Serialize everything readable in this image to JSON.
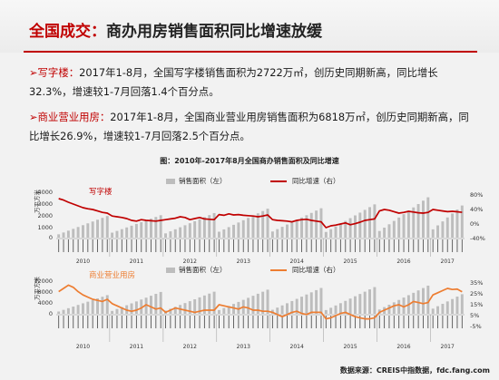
{
  "page": {
    "title_prefix": "全国成交：",
    "title_rest": "商办用房销售面积同比增速放缓",
    "para1_lead": "➢写字楼：",
    "para1_text": "2017年1-8月，全国写字楼销售面积为2722万㎡，创历史同期新高，同比增长32.3%，增速较1-7月回落1.4个百分点。",
    "para2_lead": "➢商业营业用房：",
    "para2_text": "2017年1-8月，全国商业营业用房销售面积为6818万㎡，创历史同期新高，同比增长26.9%，增速较1-7月回落2.5个百分点。",
    "figure_title": "图：2010年-2017年8月全国商办销售面积及同比增速",
    "source": "数据来源：CREIS中指数据，fdc.fang.com"
  },
  "colors": {
    "accent": "#c00000",
    "bar": "#bdbdbd",
    "office_line": "#c00000",
    "commercial_line": "#ed7d31"
  },
  "chart_data": [
    {
      "type": "bar",
      "title": "写字楼",
      "legend": [
        "销售面积（左）",
        "同比增速（右）"
      ],
      "ylabel": "万平方米",
      "left_ticks": [
        "4000",
        "3000",
        "2000",
        "1000",
        "0"
      ],
      "right_ticks": [
        "80%",
        "40%",
        "0%",
        "-40%"
      ],
      "ylim": [
        0,
        4000
      ],
      "ylim_right": [
        -40,
        80
      ],
      "years": [
        "2010",
        "2011",
        "2012",
        "2013",
        "2014",
        "2015",
        "2016",
        "2017"
      ],
      "months_per_year": [
        11,
        11,
        11,
        11,
        11,
        11,
        11,
        7
      ],
      "area_start": [
        280,
        420,
        360,
        500,
        520,
        480,
        560,
        700
      ],
      "area_end": [
        1830,
        1900,
        2080,
        2450,
        2490,
        2820,
        3420,
        2722
      ],
      "growth": [
        70,
        66,
        60,
        55,
        50,
        45,
        42,
        40,
        36,
        32,
        30,
        22,
        20,
        18,
        15,
        10,
        8,
        12,
        10,
        9,
        8,
        10,
        12,
        14,
        16,
        20,
        18,
        12,
        15,
        18,
        14,
        13,
        12,
        26,
        24,
        28,
        25,
        26,
        24,
        23,
        22,
        20,
        22,
        25,
        12,
        10,
        9,
        8,
        6,
        10,
        12,
        13,
        10,
        8,
        6,
        -10,
        -5,
        -3,
        0,
        3,
        -2,
        1,
        5,
        10,
        12,
        14,
        36,
        40,
        38,
        34,
        30,
        32,
        35,
        33,
        31,
        30,
        32,
        40,
        38,
        36,
        34,
        35,
        33.7,
        32.3
      ]
    },
    {
      "type": "bar",
      "title": "商业营业用房",
      "legend": [
        "销售面积（左）",
        "同比增速（右）"
      ],
      "ylabel": "万平方米",
      "left_ticks": [
        "12000",
        "8000",
        "4000",
        "0"
      ],
      "right_ticks": [
        "35%",
        "25%",
        "15%",
        "5%",
        "-5%"
      ],
      "ylim": [
        0,
        12000
      ],
      "ylim_right": [
        -5,
        35
      ],
      "years": [
        "2010",
        "2011",
        "2012",
        "2013",
        "2014",
        "2015",
        "2016",
        "2017"
      ],
      "months_per_year": [
        11,
        11,
        11,
        11,
        11,
        11,
        11,
        7
      ],
      "area_start": [
        800,
        1000,
        1100,
        1300,
        1400,
        1300,
        1500,
        1800
      ],
      "area_end": [
        6500,
        7600,
        7700,
        8400,
        9000,
        9300,
        9800,
        6818
      ],
      "growth": [
        27,
        30,
        33,
        31,
        27,
        24,
        22,
        20,
        19,
        18,
        20,
        16,
        14,
        12,
        10,
        9,
        10,
        12,
        15,
        13,
        11,
        12,
        8,
        10,
        12,
        11,
        10,
        9,
        8,
        9,
        10,
        10,
        10,
        15,
        14,
        13,
        12,
        11,
        13,
        12,
        10,
        10,
        9,
        9,
        8,
        6,
        4,
        6,
        8,
        9,
        7,
        6,
        8,
        8,
        8,
        2,
        3,
        5,
        7,
        8,
        6,
        4,
        3,
        2,
        2,
        3,
        8,
        10,
        12,
        14,
        15,
        13,
        15,
        18,
        17,
        16,
        17,
        24,
        26,
        28,
        30,
        29,
        29.4,
        26.9
      ]
    }
  ]
}
